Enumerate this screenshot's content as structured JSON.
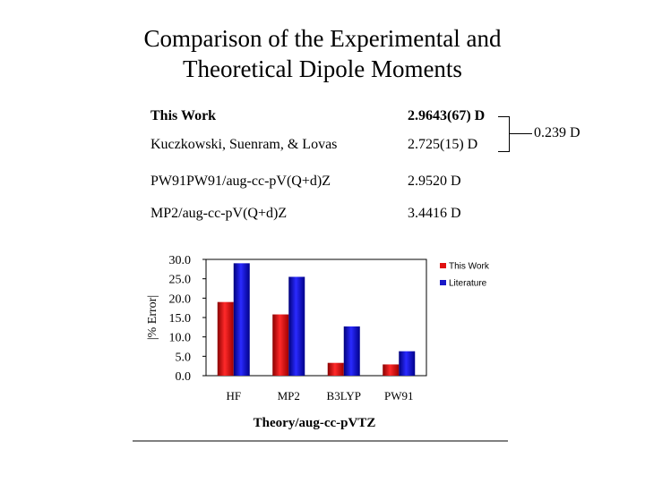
{
  "title_line1": "Comparison of the Experimental and",
  "title_line2": "Theoretical Dipole Moments",
  "table": [
    {
      "label": "This Work",
      "value": "2.9643(67) D"
    },
    {
      "label": "Kuczkowski, Suenram, & Lovas",
      "value": "2.725(15) D"
    },
    {
      "label": "PW91PW91/aug-cc-pV(Q+d)Z",
      "value": "2.9520 D"
    },
    {
      "label": "MP2/aug-cc-pV(Q+d)Z",
      "value": "3.4416 D"
    }
  ],
  "difference": "0.239 D",
  "chart_data": {
    "type": "bar",
    "categories": [
      "HF",
      "MP2",
      "B3LYP",
      "PW91"
    ],
    "series": [
      {
        "name": "This Work",
        "values": [
          19.0,
          15.8,
          3.3,
          2.9
        ],
        "color": "#e01010"
      },
      {
        "name": "Literature",
        "values": [
          29.0,
          25.5,
          12.7,
          6.3
        ],
        "color": "#1818c8"
      }
    ],
    "ylim": [
      0.0,
      30.0
    ],
    "yticks": [
      "0.0",
      "5.0",
      "10.0",
      "15.0",
      "20.0",
      "25.0",
      "30.0"
    ],
    "xlabel": "Theory/aug-cc-pVTZ",
    "ylabel": "|% Error|",
    "legend_position": "top-right"
  }
}
